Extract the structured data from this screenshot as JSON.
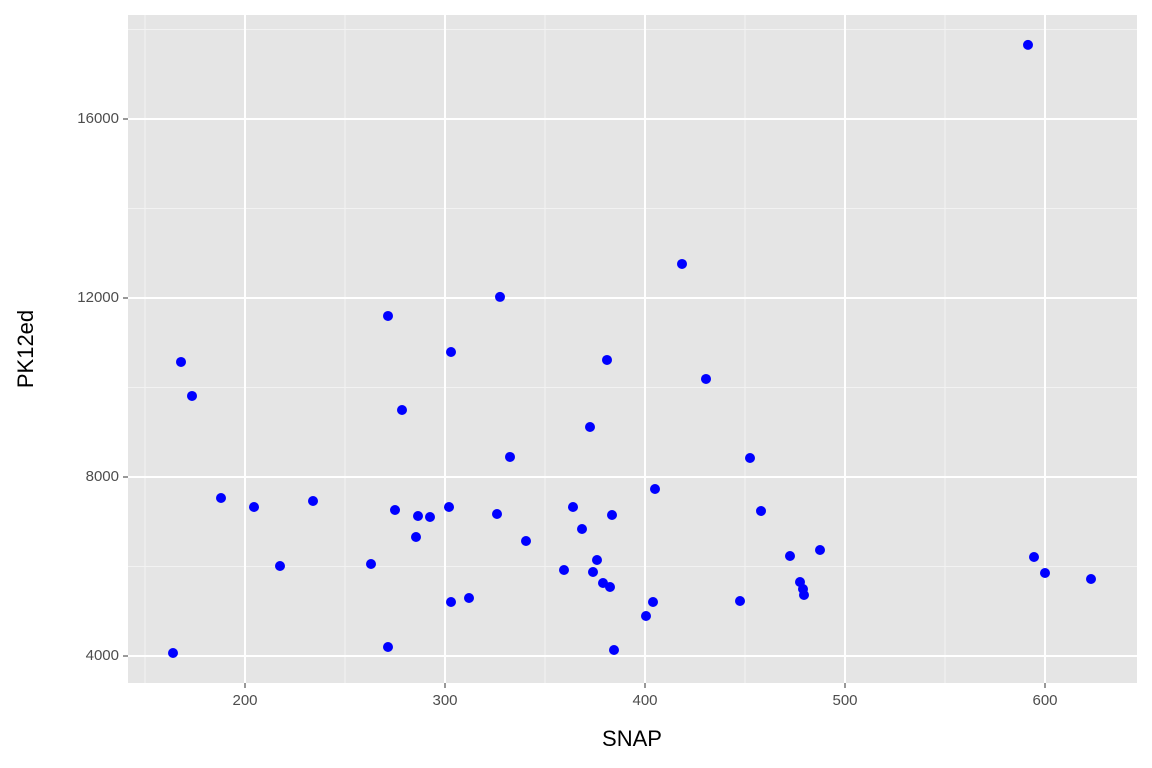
{
  "chart_data": {
    "type": "scatter",
    "x_label": "SNAP",
    "y_label": "PK12ed",
    "x": [
      591.5,
      418.5,
      327.5,
      271.5,
      303,
      381,
      168,
      430.5,
      173.5,
      278.5,
      372.5,
      332.5,
      452.5,
      405,
      188,
      234,
      204.5,
      302,
      364,
      275,
      458,
      326,
      383.5,
      286.5,
      292.5,
      368.5,
      285.5,
      340.5,
      487.5,
      472.5,
      594.5,
      376,
      217.5,
      263,
      359.5,
      374,
      600,
      623,
      477.5,
      379,
      382.5,
      479,
      479.5,
      312,
      303,
      404,
      447.5,
      400.5,
      271.5,
      384.5,
      164
    ],
    "values": [
      17656,
      12761,
      12024,
      11599,
      10794,
      10616,
      10571,
      10191,
      9811,
      9498,
      9118,
      8448,
      8425,
      7732,
      7531,
      7464,
      7330,
      7330,
      7330,
      7263,
      7241,
      7174,
      7151,
      7129,
      7107,
      6838,
      6660,
      6570,
      6369,
      6235,
      6213,
      6146,
      6012,
      6056,
      5922,
      5877,
      5855,
      5721,
      5654,
      5632,
      5542,
      5497,
      5363,
      5296,
      5207,
      5207,
      5229,
      4894,
      4201,
      4134,
      4067
    ],
    "color": "#0000ff",
    "xlim": [
      141.5,
      646
    ],
    "ylim": [
      3397,
      18324
    ],
    "xticks": [
      200,
      300,
      400,
      500,
      600
    ],
    "yticks": [
      4000,
      8000,
      12000,
      16000
    ],
    "grid": true
  }
}
